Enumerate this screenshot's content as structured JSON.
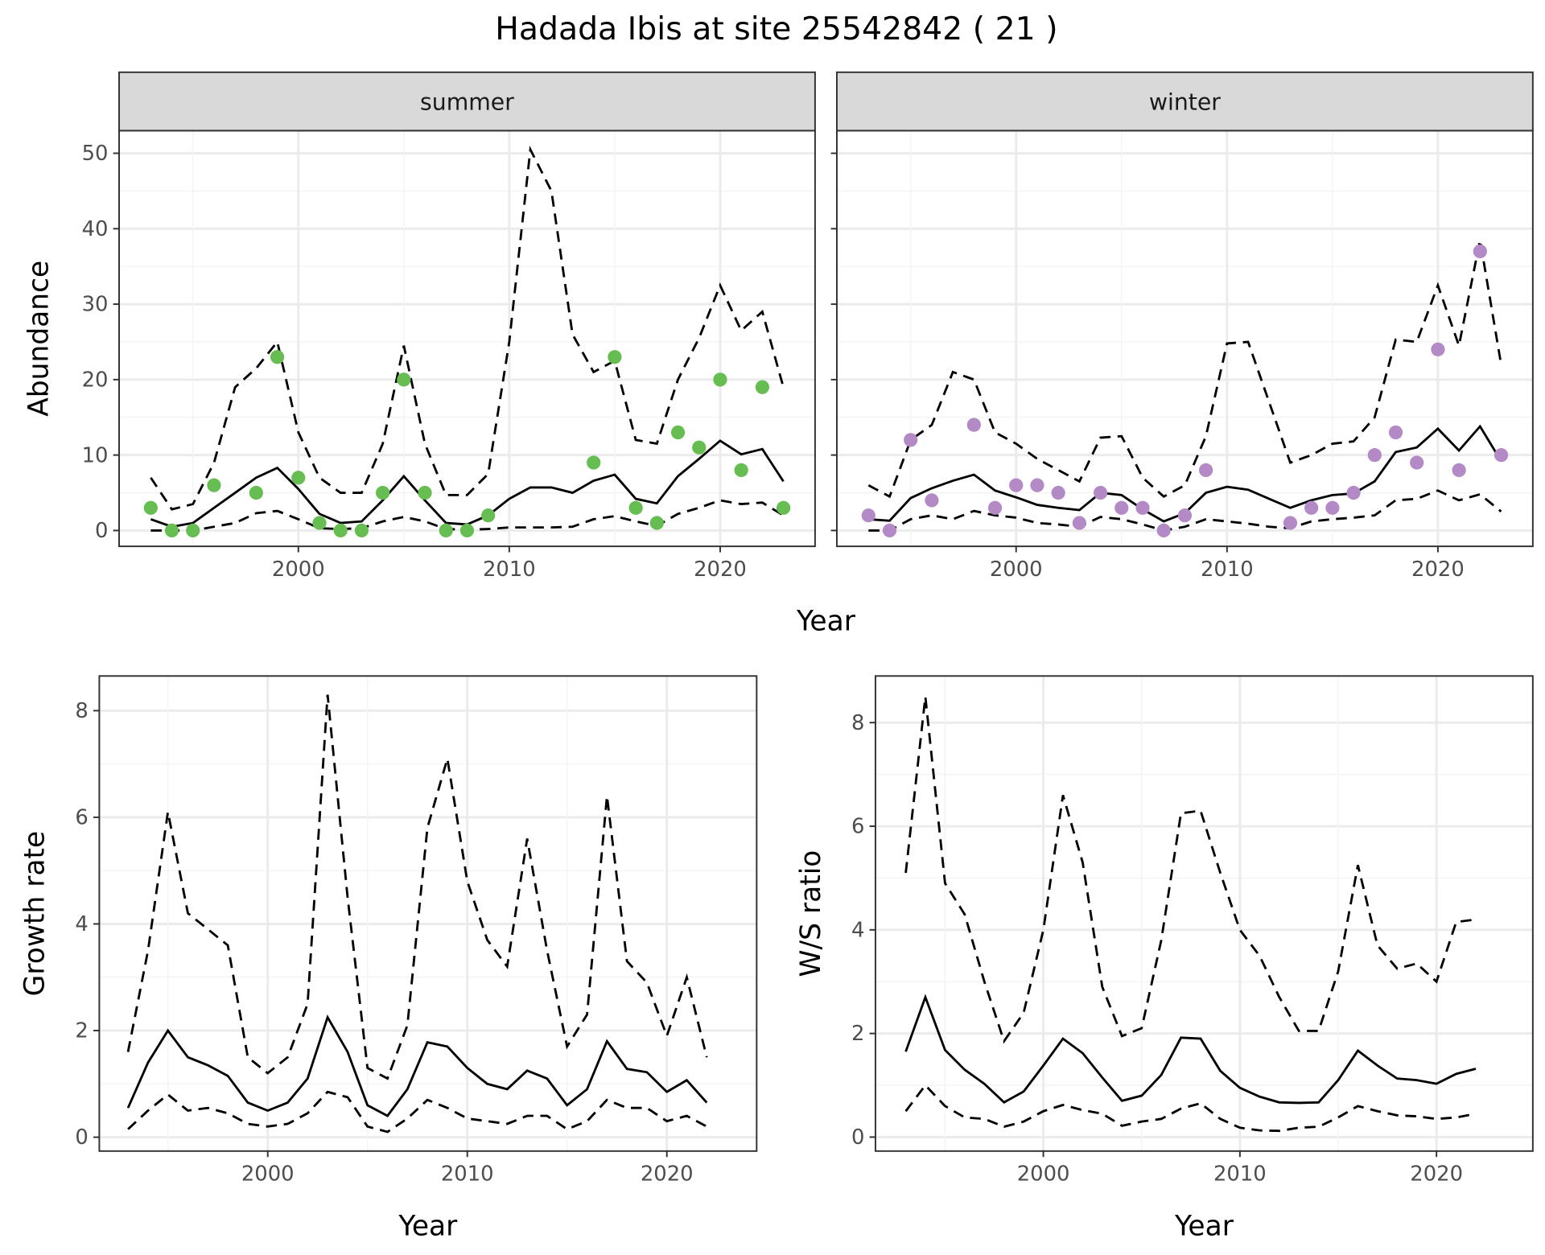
{
  "title": "Hadada Ibis at site 25542842 ( 21 )",
  "colors": {
    "summer_points": "#66bd51",
    "winter_points": "#b48ac6",
    "line": "#000000"
  },
  "chart_data": [
    {
      "type": "line",
      "panel": "summer",
      "strip_label": "summer",
      "ylabel": "Abundance",
      "xlabel": "Year",
      "xlim": [
        1991.5,
        2024.5
      ],
      "ylim": [
        -2.1,
        53
      ],
      "xticks": [
        2000,
        2010,
        2020
      ],
      "yticks": [
        0,
        10,
        20,
        30,
        40,
        50
      ],
      "years": [
        1993,
        1994,
        1995,
        1996,
        1997,
        1998,
        1999,
        2000,
        2001,
        2002,
        2003,
        2004,
        2005,
        2006,
        2007,
        2008,
        2009,
        2010,
        2011,
        2012,
        2013,
        2014,
        2015,
        2016,
        2017,
        2018,
        2019,
        2020,
        2021,
        2022,
        2023
      ],
      "mean": [
        1.5,
        0.5,
        1,
        3,
        5,
        7,
        8.3,
        5.5,
        2.2,
        1,
        1.2,
        4,
        7.2,
        4,
        1,
        0.8,
        2,
        4.2,
        5.7,
        5.7,
        5,
        6.6,
        7.4,
        4.2,
        3.6,
        7.2,
        9.5,
        11.9,
        10.1,
        10.8,
        6.5
      ],
      "upper": [
        7,
        2.8,
        3.5,
        9,
        19,
        21.5,
        25,
        13,
        7,
        5,
        5,
        11.5,
        24.5,
        11.5,
        4.7,
        4.7,
        7.5,
        25,
        50.5,
        45,
        26,
        21,
        22.5,
        12,
        11.5,
        20,
        25.5,
        32.5,
        26.5,
        29,
        19
      ],
      "lower": [
        0,
        0,
        0,
        0.5,
        1,
        2.3,
        2.6,
        1.5,
        0.3,
        0.2,
        0.3,
        1.2,
        1.8,
        1.2,
        0.2,
        0.1,
        0.2,
        0.4,
        0.4,
        0.4,
        0.5,
        1.5,
        1.9,
        1.2,
        0.6,
        2.2,
        3,
        4,
        3.5,
        3.7,
        2
      ],
      "points": {
        "x": [
          1993,
          1994,
          1995,
          1996,
          1998,
          1999,
          2000,
          2001,
          2002,
          2003,
          2004,
          2005,
          2006,
          2007,
          2008,
          2009,
          2014,
          2015,
          2016,
          2017,
          2018,
          2019,
          2020,
          2021,
          2022,
          2023
        ],
        "y": [
          3,
          0,
          0,
          6,
          5,
          23,
          7,
          1,
          0,
          0,
          5,
          20,
          5,
          0,
          0,
          2,
          9,
          23,
          3,
          1,
          13,
          11,
          20,
          8,
          19,
          3
        ]
      }
    },
    {
      "type": "line",
      "panel": "winter",
      "strip_label": "winter",
      "xlabel": "Year",
      "xlim": [
        1991.5,
        2024.5
      ],
      "ylim": [
        -2.1,
        53
      ],
      "xticks": [
        2000,
        2010,
        2020
      ],
      "yticks": [
        0,
        10,
        20,
        30,
        40,
        50
      ],
      "years": [
        1993,
        1994,
        1995,
        1996,
        1997,
        1998,
        1999,
        2000,
        2001,
        2002,
        2003,
        2004,
        2005,
        2006,
        2007,
        2008,
        2009,
        2010,
        2011,
        2012,
        2013,
        2014,
        2015,
        2016,
        2017,
        2018,
        2019,
        2020,
        2021,
        2022,
        2023
      ],
      "mean": [
        1.5,
        1.3,
        4.3,
        5.6,
        6.6,
        7.4,
        5.3,
        4.4,
        3.4,
        3,
        2.7,
        5,
        4.7,
        2.8,
        1.2,
        2.3,
        5,
        5.8,
        5.4,
        4.2,
        3,
        4,
        4.7,
        4.9,
        6.5,
        10.4,
        11,
        13.5,
        10.6,
        13.8,
        9.2
      ],
      "upper": [
        6,
        4.5,
        12,
        14,
        21,
        20,
        13,
        11.5,
        9.5,
        8,
        6.5,
        12.3,
        12.5,
        7,
        4.5,
        6,
        12.5,
        24.8,
        25,
        17,
        9,
        10,
        11.5,
        11.8,
        15,
        25.3,
        25,
        32.5,
        24.5,
        38.5,
        22
      ],
      "lower": [
        0,
        0,
        1.5,
        2,
        1.5,
        2.6,
        2,
        1.7,
        1,
        0.8,
        0.5,
        1.8,
        1.5,
        0.8,
        0,
        0.5,
        1.5,
        1.2,
        0.9,
        0.5,
        0.3,
        1.2,
        1.5,
        1.7,
        2,
        4,
        4.2,
        5.3,
        4,
        4.8,
        2.5
      ],
      "points": {
        "x": [
          1993,
          1994,
          1995,
          1996,
          1998,
          1999,
          2000,
          2001,
          2002,
          2003,
          2004,
          2005,
          2006,
          2007,
          2008,
          2009,
          2013,
          2014,
          2015,
          2016,
          2017,
          2018,
          2019,
          2020,
          2021,
          2022,
          2023
        ],
        "y": [
          2,
          0,
          12,
          4,
          14,
          3,
          6,
          6,
          5,
          1,
          5,
          3,
          3,
          0,
          2,
          8,
          1,
          3,
          3,
          5,
          10,
          13,
          9,
          24,
          8,
          37,
          10
        ]
      }
    },
    {
      "type": "line",
      "panel": "growth",
      "ylabel": "Growth rate",
      "xlabel": "Year",
      "xlim": [
        1991.56,
        2024.5
      ],
      "ylim": [
        -0.26,
        8.65
      ],
      "xticks": [
        2000,
        2010,
        2020
      ],
      "yticks": [
        0,
        2,
        4,
        6,
        8
      ],
      "years": [
        1993,
        1994,
        1995,
        1996,
        1997,
        1998,
        1999,
        2000,
        2001,
        2002,
        2003,
        2004,
        2005,
        2006,
        2007,
        2008,
        2009,
        2010,
        2011,
        2012,
        2013,
        2014,
        2015,
        2016,
        2017,
        2018,
        2019,
        2020,
        2021,
        2022
      ],
      "mean": [
        0.55,
        1.4,
        2.0,
        1.5,
        1.35,
        1.15,
        0.65,
        0.5,
        0.65,
        1.1,
        2.25,
        1.6,
        0.6,
        0.4,
        0.9,
        1.78,
        1.7,
        1.3,
        1.0,
        0.9,
        1.25,
        1.1,
        0.6,
        0.9,
        1.8,
        1.28,
        1.22,
        0.85,
        1.07,
        0.65
      ],
      "upper": [
        1.6,
        3.5,
        6.1,
        4.2,
        3.9,
        3.6,
        1.5,
        1.2,
        1.5,
        2.5,
        8.3,
        4.5,
        1.3,
        1.1,
        2.1,
        5.8,
        7.1,
        4.8,
        3.7,
        3.2,
        5.6,
        3.5,
        1.7,
        2.3,
        6.4,
        3.3,
        2.9,
        1.9,
        3.0,
        1.5
      ],
      "lower": [
        0.15,
        0.5,
        0.8,
        0.5,
        0.55,
        0.45,
        0.25,
        0.2,
        0.25,
        0.45,
        0.85,
        0.75,
        0.2,
        0.1,
        0.35,
        0.7,
        0.55,
        0.35,
        0.3,
        0.25,
        0.4,
        0.4,
        0.15,
        0.3,
        0.7,
        0.55,
        0.55,
        0.3,
        0.4,
        0.2
      ]
    },
    {
      "type": "line",
      "panel": "ratio",
      "ylabel": "W/S ratio",
      "xlabel": "Year",
      "xlim": [
        1991.46,
        2024.9
      ],
      "ylim": [
        -0.27,
        8.9
      ],
      "xticks": [
        2000,
        2010,
        2020
      ],
      "yticks": [
        0,
        2,
        4,
        6,
        8
      ],
      "years": [
        1993,
        1994,
        1995,
        1996,
        1997,
        1998,
        1999,
        2000,
        2001,
        2002,
        2003,
        2004,
        2005,
        2006,
        2007,
        2008,
        2009,
        2010,
        2011,
        2012,
        2013,
        2014,
        2015,
        2016,
        2017,
        2018,
        2019,
        2020,
        2021,
        2022
      ],
      "mean": [
        1.65,
        2.7,
        1.68,
        1.3,
        1.03,
        0.67,
        0.88,
        1.38,
        1.9,
        1.62,
        1.15,
        0.7,
        0.8,
        1.2,
        1.92,
        1.9,
        1.28,
        0.95,
        0.78,
        0.67,
        0.66,
        0.67,
        1.1,
        1.67,
        1.38,
        1.13,
        1.1,
        1.03,
        1.22,
        1.32
      ],
      "upper": [
        5.1,
        8.5,
        4.9,
        4.3,
        3.0,
        1.85,
        2.4,
        4.0,
        6.6,
        5.3,
        2.9,
        1.95,
        2.1,
        3.8,
        6.25,
        6.3,
        5.1,
        4.0,
        3.5,
        2.7,
        2.05,
        2.05,
        3.2,
        5.25,
        3.7,
        3.25,
        3.35,
        3.0,
        4.15,
        4.2
      ],
      "lower": [
        0.5,
        1.0,
        0.6,
        0.38,
        0.35,
        0.2,
        0.3,
        0.5,
        0.62,
        0.52,
        0.45,
        0.22,
        0.3,
        0.35,
        0.55,
        0.65,
        0.35,
        0.18,
        0.13,
        0.12,
        0.18,
        0.2,
        0.38,
        0.6,
        0.5,
        0.42,
        0.4,
        0.35,
        0.38,
        0.45
      ]
    }
  ]
}
